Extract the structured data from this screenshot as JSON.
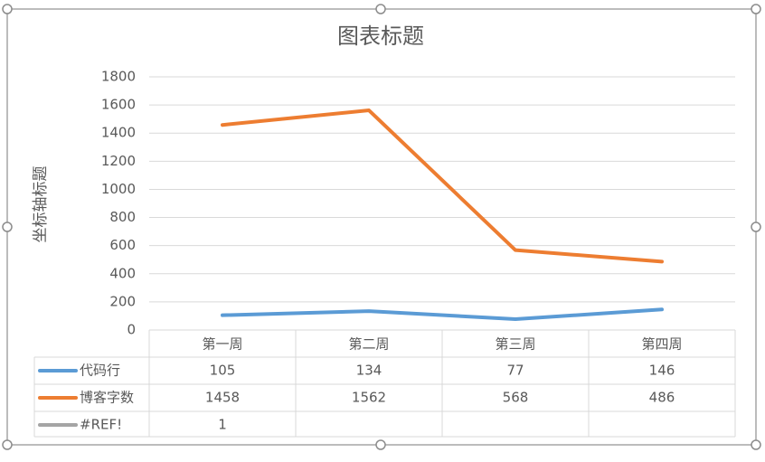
{
  "chart_data": {
    "type": "line",
    "title": "图表标题",
    "y_label": "坐标轴标题",
    "categories": [
      "第一周",
      "第二周",
      "第三周",
      "第四周"
    ],
    "series": [
      {
        "name": "代码行",
        "color": "#5b9bd5",
        "values": [
          105,
          134,
          77,
          146
        ]
      },
      {
        "name": "博客字数",
        "color": "#ed7d31",
        "values": [
          1458,
          1562,
          568,
          486
        ]
      },
      {
        "name": "#REF!",
        "color": "#a5a5a5",
        "values": [
          1,
          null,
          null,
          null
        ]
      }
    ],
    "ylim": [
      0,
      1800
    ],
    "yticks": [
      0,
      200,
      400,
      600,
      800,
      1000,
      1200,
      1400,
      1600,
      1800
    ],
    "grid": true,
    "data_table": true
  }
}
